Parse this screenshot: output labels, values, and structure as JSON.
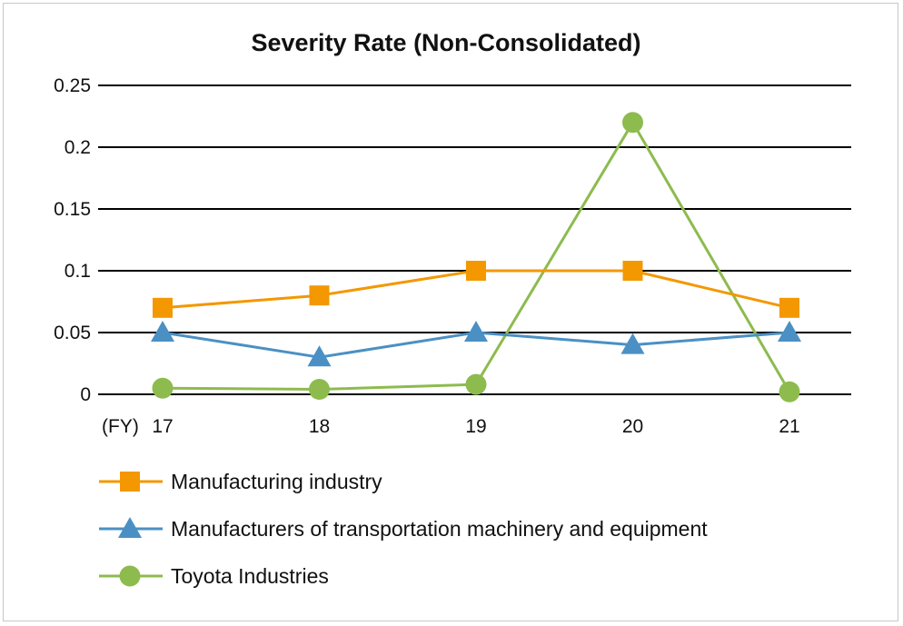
{
  "chart_data": {
    "type": "line",
    "title": "Severity Rate (Non-Consolidated)",
    "xlabel": "(FY)",
    "ylabel": "",
    "categories": [
      "17",
      "18",
      "19",
      "20",
      "21"
    ],
    "ylim": [
      0,
      0.25
    ],
    "yticks": [
      "0",
      "0.05",
      "0.1",
      "0.15",
      "0.2",
      "0.25"
    ],
    "grid": true,
    "legend_position": "bottom-left",
    "series": [
      {
        "name": "Manufacturing industry",
        "values": [
          0.07,
          0.08,
          0.1,
          0.1,
          0.07
        ],
        "color": "#F39800",
        "marker": "square"
      },
      {
        "name": "Manufacturers of transportation machinery and equipment",
        "values": [
          0.05,
          0.03,
          0.05,
          0.04,
          0.05
        ],
        "color": "#4A90C4",
        "marker": "triangle"
      },
      {
        "name": "Toyota Industries",
        "values": [
          0.005,
          0.004,
          0.008,
          0.22,
          0.002
        ],
        "color": "#8DBB4E",
        "marker": "circle"
      }
    ]
  }
}
